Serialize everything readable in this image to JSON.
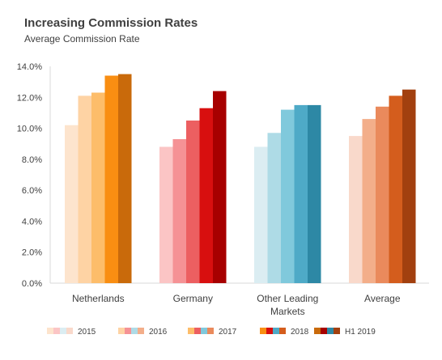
{
  "chart_data": {
    "type": "bar",
    "title": "Increasing Commission Rates",
    "subtitle": "Average Commission Rate",
    "categories": [
      "Netherlands",
      "Germany",
      "Other Leading Markets",
      "Average"
    ],
    "category_lines": [
      [
        "Netherlands"
      ],
      [
        "Germany"
      ],
      [
        "Other Leading",
        "Markets"
      ],
      [
        "Average"
      ]
    ],
    "series": [
      {
        "name": "2015",
        "values": [
          10.2,
          8.8,
          8.8,
          9.5
        ]
      },
      {
        "name": "2016",
        "values": [
          12.1,
          9.3,
          9.7,
          10.6
        ]
      },
      {
        "name": "2017",
        "values": [
          12.3,
          10.5,
          11.2,
          11.4
        ]
      },
      {
        "name": "2018",
        "values": [
          13.4,
          11.3,
          11.5,
          12.1
        ]
      },
      {
        "name": "H1 2019",
        "values": [
          13.5,
          12.4,
          11.5,
          12.5
        ]
      }
    ],
    "colors": [
      [
        "#fde4cd",
        "#fbc5c5",
        "#dbedf2",
        "#f9d9cb"
      ],
      [
        "#fed3a4",
        "#f59295",
        "#aedbe6",
        "#f3ae8a"
      ],
      [
        "#fdbd6a",
        "#ec5f61",
        "#80c9dc",
        "#ea8a5c"
      ],
      [
        "#f98e12",
        "#d80f0f",
        "#4eaac7",
        "#d45d1d"
      ],
      [
        "#c96a0b",
        "#a70000",
        "#2d88a5",
        "#a2400f"
      ]
    ],
    "ylim": [
      0,
      14
    ],
    "ytick_labels": [
      "0.0%",
      "2.0%",
      "4.0%",
      "6.0%",
      "8.0%",
      "10.0%",
      "12.0%",
      "14.0%"
    ],
    "grid": false,
    "legend_position": "bottom"
  }
}
